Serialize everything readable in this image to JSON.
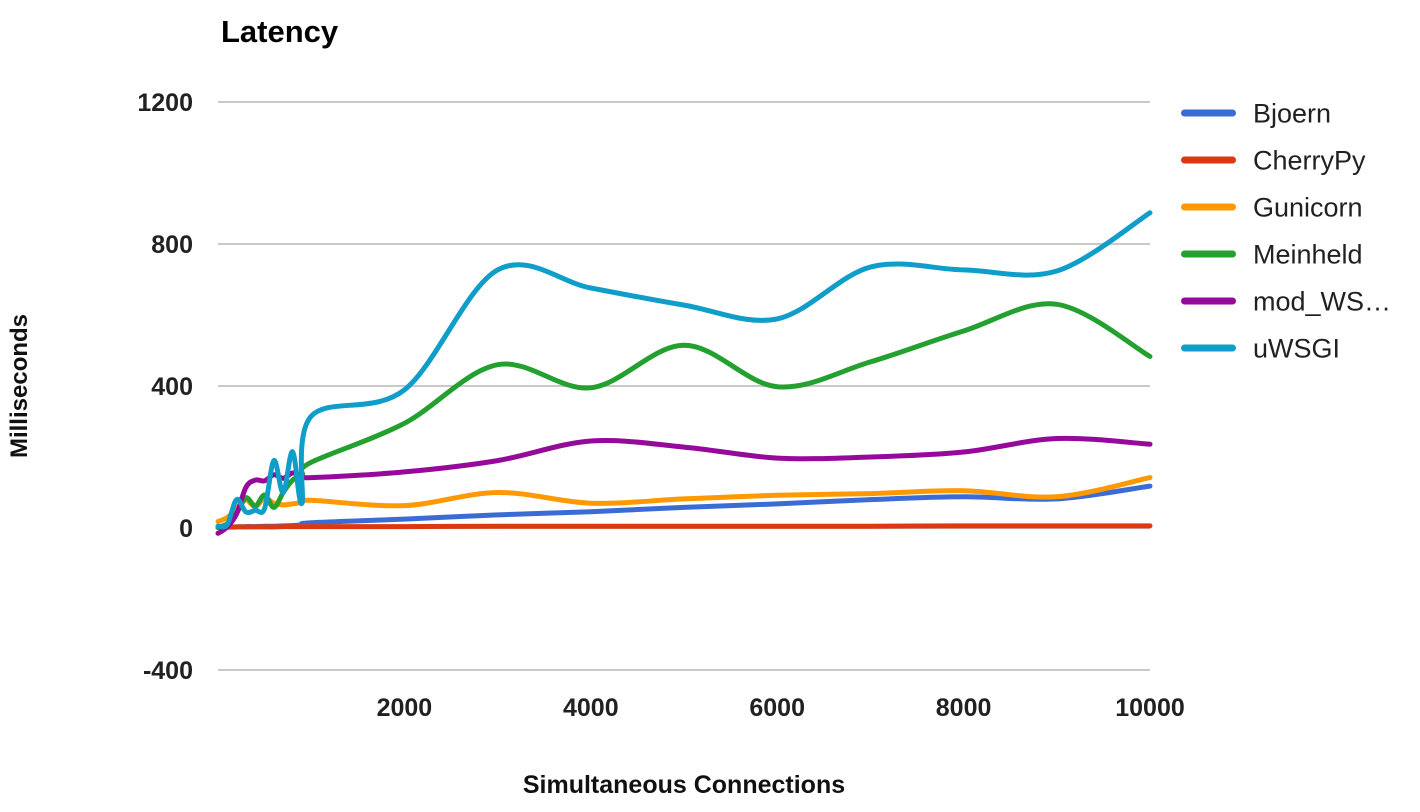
{
  "title": "Latency",
  "colors": {
    "grid": "#C9C9C9",
    "tick_text": "#212121",
    "title_text": "#000000"
  },
  "chart_data": {
    "type": "line",
    "title": "Latency",
    "xlabel": "Simultaneous Connections",
    "ylabel": "Milliseconds",
    "xlim": [
      0,
      10000
    ],
    "ylim": [
      -400,
      1200
    ],
    "x_ticks": [
      2000,
      4000,
      6000,
      8000,
      10000
    ],
    "y_ticks": [
      -400,
      0,
      400,
      800,
      1200
    ],
    "grid": "horizontal",
    "legend_position": "right",
    "curve": "smooth",
    "x": [
      0,
      100,
      200,
      300,
      400,
      500,
      600,
      700,
      800,
      900,
      1000,
      2000,
      3000,
      4000,
      5000,
      6000,
      7000,
      8000,
      9000,
      10000
    ],
    "series": [
      {
        "name": "Bjoern",
        "color": "#3B6CD6",
        "values": [
          1,
          2,
          3,
          4,
          4,
          5,
          5,
          6,
          7,
          9,
          15,
          25,
          37,
          46,
          58,
          68,
          80,
          88,
          82,
          118
        ]
      },
      {
        "name": "CherryPy",
        "color": "#DC3912",
        "values": [
          2,
          3,
          3,
          3,
          3,
          3,
          3,
          4,
          4,
          4,
          4,
          4,
          5,
          5,
          5,
          5,
          5,
          6,
          6,
          6
        ]
      },
      {
        "name": "Gunicorn",
        "color": "#FF9903",
        "values": [
          18,
          30,
          55,
          79,
          60,
          84,
          70,
          65,
          68,
          72,
          78,
          63,
          100,
          70,
          82,
          92,
          97,
          105,
          88,
          142
        ]
      },
      {
        "name": "Meinheld",
        "color": "#23A02F",
        "values": [
          2,
          12,
          42,
          85,
          62,
          93,
          58,
          100,
          135,
          150,
          185,
          295,
          460,
          395,
          515,
          398,
          468,
          555,
          630,
          483
        ]
      },
      {
        "name": "mod_WS…",
        "color": "#95099B",
        "values": [
          -15,
          3,
          40,
          115,
          135,
          133,
          150,
          140,
          155,
          148,
          142,
          158,
          190,
          245,
          228,
          197,
          200,
          214,
          252,
          236
        ]
      },
      {
        "name": "uWSGI",
        "color": "#0E9EC9",
        "values": [
          5,
          10,
          80,
          45,
          50,
          55,
          190,
          100,
          215,
          70,
          315,
          389,
          727,
          676,
          628,
          589,
          735,
          727,
          724,
          888
        ]
      }
    ]
  }
}
